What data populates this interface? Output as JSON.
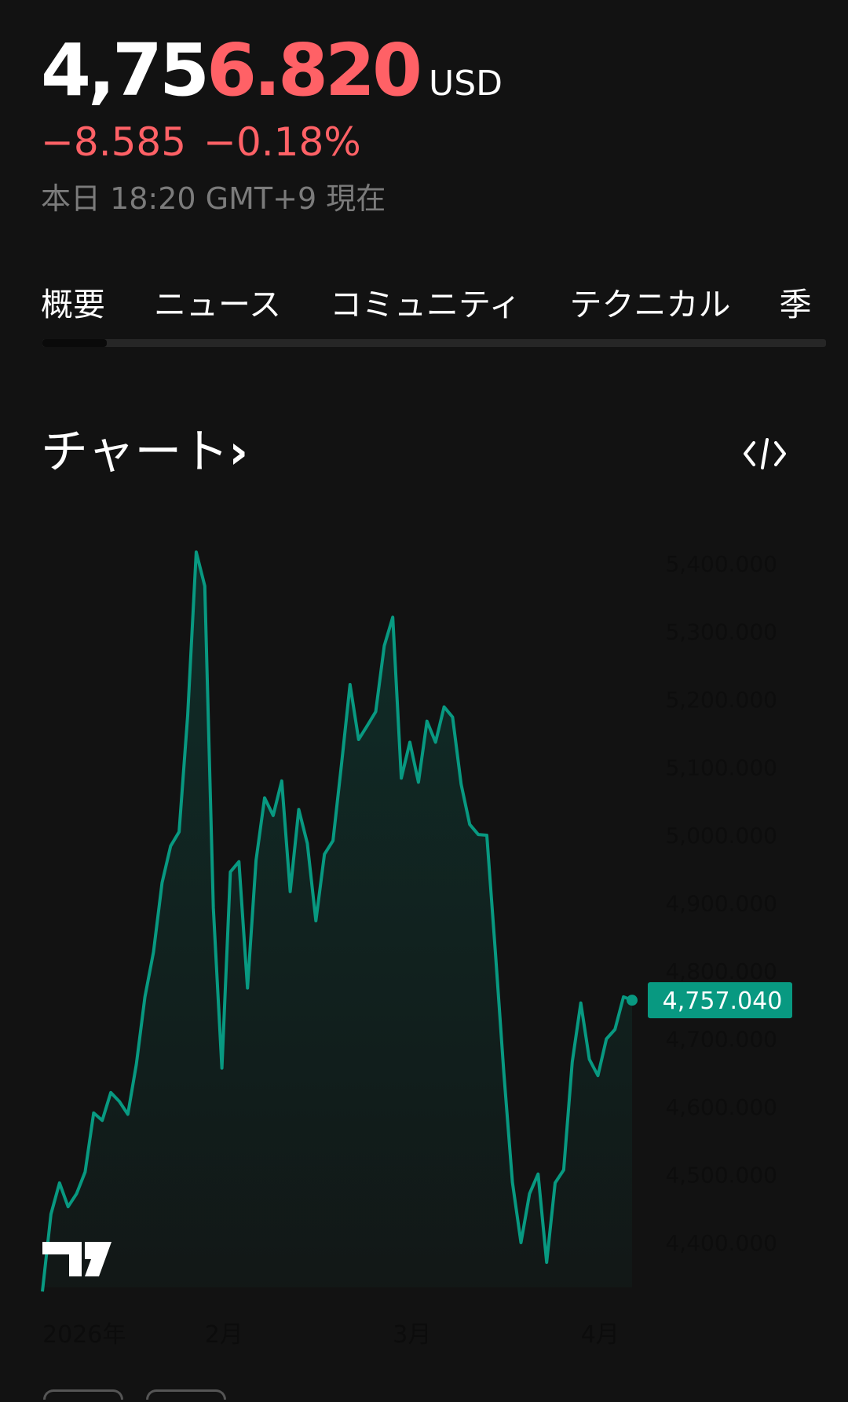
{
  "quote": {
    "price_prefix": "4,75",
    "price_suffix": "6.820",
    "currency": "USD",
    "change": "−8.585",
    "change_pct": "−0.18%",
    "timestamp": "本日 18:20 GMT+9 現在"
  },
  "tabs": [
    {
      "label": "概要",
      "active": true
    },
    {
      "label": "ニュース"
    },
    {
      "label": "コミュニティ"
    },
    {
      "label": "テクニカル"
    },
    {
      "label": "季"
    }
  ],
  "chart_section": {
    "title": "チャート",
    "chevron": "›",
    "embed_icon": "code-icon"
  },
  "colors": {
    "background": "#121212",
    "negative": "#ff6166",
    "line": "#089981",
    "label_bg": "#089981"
  },
  "chart_data": {
    "type": "area",
    "y_ticks": [
      "5,400.000",
      "5,300.000",
      "5,200.000",
      "5,100.000",
      "5,000.000",
      "4,900.000",
      "4,800.000",
      "4,700.000",
      "4,600.000",
      "4,500.000",
      "4,400.000"
    ],
    "y_tick_values": [
      5400,
      5300,
      5200,
      5100,
      5000,
      4900,
      4800,
      4700,
      4600,
      4500,
      4400
    ],
    "x_ticks": [
      {
        "label": "2026年",
        "index": 0
      },
      {
        "label": "2月",
        "index": 19
      },
      {
        "label": "3月",
        "index": 41
      },
      {
        "label": "4月",
        "index": 63
      }
    ],
    "values": [
      4328,
      4442,
      4488,
      4453,
      4472,
      4504,
      4591,
      4580,
      4621,
      4608,
      4589,
      4663,
      4762,
      4828,
      4930,
      4984,
      5005,
      5176,
      5417,
      5367,
      4893,
      4657,
      4946,
      4961,
      4775,
      4963,
      5055,
      5029,
      5080,
      4917,
      5038,
      4988,
      4874,
      4972,
      4992,
      5104,
      5222,
      5141,
      5161,
      5182,
      5279,
      5321,
      5084,
      5137,
      5078,
      5168,
      5137,
      5189,
      5174,
      5075,
      5016,
      5001,
      5000,
      4828,
      4650,
      4489,
      4400,
      4472,
      4501,
      4371,
      4488,
      4507,
      4666,
      4753,
      4670,
      4646,
      4700,
      4714,
      4762,
      4757.04
    ],
    "last_value_label": "4,757.040",
    "ylim": [
      4310,
      5430
    ],
    "grid": false,
    "legend": "none"
  }
}
